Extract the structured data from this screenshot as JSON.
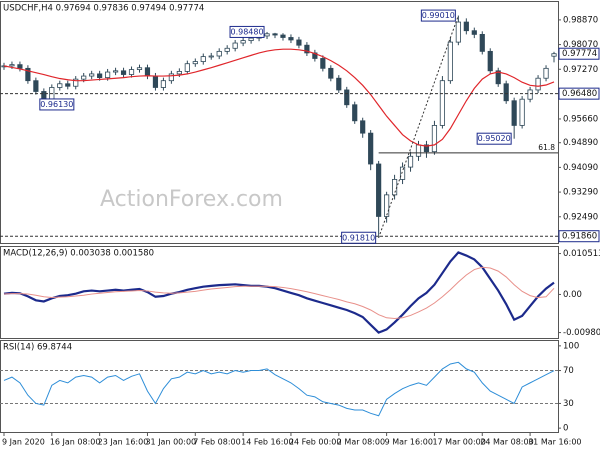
{
  "chart_data": {
    "type": "candlestick",
    "title": "USDCHF,H4  0.97694 0.97836 0.97494 0.97774",
    "watermark": "ActionForex.com",
    "candle_color": "#2f4858",
    "categories": [
      "9 Jan 2020",
      null,
      null,
      null,
      null,
      null,
      "16 Jan 08:00",
      null,
      null,
      null,
      null,
      null,
      "23 Jan 16:00",
      null,
      null,
      null,
      null,
      null,
      "31 Jan 00:00",
      null,
      null,
      null,
      null,
      null,
      "7 Feb 08:00",
      null,
      null,
      null,
      null,
      null,
      "14 Feb 16:00",
      null,
      null,
      null,
      null,
      null,
      "24 Feb 00:00",
      null,
      null,
      null,
      null,
      null,
      "2 Mar 08:00",
      null,
      null,
      null,
      null,
      null,
      "9 Mar 16:00",
      null,
      null,
      null,
      null,
      null,
      "17 Mar 00:00",
      null,
      null,
      null,
      null,
      null,
      "24 Mar 08:00",
      null,
      null,
      null,
      null,
      null,
      "31 Mar 16:00",
      null,
      null,
      null
    ],
    "open": [
      0.9735,
      0.9738,
      0.9742,
      0.973,
      0.969,
      0.9655,
      0.963,
      0.9668,
      0.968,
      0.9672,
      0.9695,
      0.9705,
      0.9712,
      0.97,
      0.9718,
      0.9722,
      0.971,
      0.9726,
      0.9732,
      0.9705,
      0.9668,
      0.969,
      0.9712,
      0.972,
      0.9745,
      0.9752,
      0.9768,
      0.977,
      0.9785,
      0.9795,
      0.9812,
      0.982,
      0.9828,
      0.9835,
      0.9842,
      0.9838,
      0.983,
      0.9822,
      0.9805,
      0.978,
      0.9762,
      0.973,
      0.9698,
      0.966,
      0.9612,
      0.956,
      0.952,
      0.942,
      0.925,
      0.932,
      0.937,
      0.941,
      0.9445,
      0.9482,
      0.946,
      0.9545,
      0.969,
      0.9815,
      0.988,
      0.9852,
      0.984,
      0.9785,
      0.9722,
      0.968,
      0.9625,
      0.9545,
      0.963,
      0.966,
      0.9698,
      0.97694
    ],
    "high": [
      0.9748,
      0.9752,
      0.9752,
      0.974,
      0.97,
      0.9665,
      0.9678,
      0.969,
      0.969,
      0.9705,
      0.9715,
      0.9722,
      0.9722,
      0.9728,
      0.9732,
      0.9732,
      0.9736,
      0.9742,
      0.9742,
      0.9715,
      0.97,
      0.9722,
      0.973,
      0.9755,
      0.9762,
      0.9778,
      0.978,
      0.9795,
      0.9805,
      0.9822,
      0.983,
      0.9838,
      0.9845,
      0.9848,
      0.9845,
      0.9844,
      0.984,
      0.9832,
      0.9815,
      0.979,
      0.9772,
      0.974,
      0.9708,
      0.967,
      0.9622,
      0.957,
      0.953,
      0.943,
      0.933,
      0.9385,
      0.9425,
      0.946,
      0.9495,
      0.9495,
      0.956,
      0.9705,
      0.983,
      0.9901,
      0.9892,
      0.9862,
      0.985,
      0.9795,
      0.9732,
      0.969,
      0.9635,
      0.964,
      0.967,
      0.9708,
      0.974,
      0.97836
    ],
    "low": [
      0.9725,
      0.9728,
      0.972,
      0.968,
      0.9645,
      0.9613,
      0.962,
      0.9658,
      0.9662,
      0.9662,
      0.9685,
      0.9695,
      0.969,
      0.969,
      0.9708,
      0.97,
      0.97,
      0.9716,
      0.9695,
      0.9658,
      0.9658,
      0.968,
      0.9702,
      0.971,
      0.9735,
      0.9742,
      0.9758,
      0.976,
      0.9775,
      0.9785,
      0.9802,
      0.981,
      0.9818,
      0.9825,
      0.9828,
      0.982,
      0.9812,
      0.9795,
      0.977,
      0.9752,
      0.972,
      0.9688,
      0.965,
      0.9602,
      0.955,
      0.9505,
      0.94,
      0.9181,
      0.923,
      0.9305,
      0.9355,
      0.9395,
      0.943,
      0.944,
      0.945,
      0.9535,
      0.968,
      0.9805,
      0.984,
      0.9828,
      0.9775,
      0.9712,
      0.967,
      0.9615,
      0.9502,
      0.9535,
      0.962,
      0.965,
      0.9688,
      0.97494
    ],
    "close": [
      0.9738,
      0.9742,
      0.973,
      0.969,
      0.9655,
      0.963,
      0.9668,
      0.968,
      0.9672,
      0.9695,
      0.9705,
      0.9712,
      0.97,
      0.9718,
      0.9722,
      0.971,
      0.9726,
      0.9732,
      0.9705,
      0.9668,
      0.969,
      0.9712,
      0.972,
      0.9745,
      0.9752,
      0.9768,
      0.977,
      0.9785,
      0.9795,
      0.9812,
      0.982,
      0.9828,
      0.9835,
      0.9842,
      0.9838,
      0.983,
      0.9822,
      0.9805,
      0.978,
      0.9762,
      0.973,
      0.9698,
      0.966,
      0.9612,
      0.956,
      0.952,
      0.942,
      0.925,
      0.932,
      0.937,
      0.941,
      0.9445,
      0.9482,
      0.946,
      0.9545,
      0.969,
      0.9815,
      0.988,
      0.9852,
      0.984,
      0.9785,
      0.9722,
      0.968,
      0.9625,
      0.9545,
      0.963,
      0.966,
      0.9698,
      0.973,
      0.97774
    ],
    "series": [
      {
        "color": "#e0262b",
        "values": [
          0.9738,
          0.9733,
          0.9728,
          0.9722,
          0.9716,
          0.971,
          0.9703,
          0.9697,
          0.9693,
          0.969,
          0.969,
          0.9692,
          0.9694,
          0.9696,
          0.9698,
          0.97,
          0.9703,
          0.9705,
          0.9706,
          0.9705,
          0.9705,
          0.9706,
          0.9708,
          0.9712,
          0.9718,
          0.9725,
          0.9732,
          0.974,
          0.9748,
          0.9756,
          0.9764,
          0.9772,
          0.978,
          0.9786,
          0.979,
          0.9792,
          0.9792,
          0.979,
          0.9786,
          0.9778,
          0.9768,
          0.9755,
          0.974,
          0.9722,
          0.97,
          0.9675,
          0.9645,
          0.961,
          0.9575,
          0.9545,
          0.9515,
          0.9495,
          0.9482,
          0.9478,
          0.9482,
          0.95,
          0.9535,
          0.958,
          0.9625,
          0.9665,
          0.9695,
          0.9712,
          0.9718,
          0.9712,
          0.97,
          0.9685,
          0.9675,
          0.9672,
          0.9676,
          0.9686
        ]
      }
    ],
    "ylim": [
      0.9164,
      0.9945
    ],
    "yticks": [
      {
        "value": 0.9887,
        "label": "0.98870"
      },
      {
        "value": 0.9807,
        "label": "0.98070"
      },
      {
        "value": 0.9727,
        "label": "0.97270"
      },
      {
        "value": 0.9566,
        "label": "0.95660"
      },
      {
        "value": 0.9489,
        "label": "0.94890"
      },
      {
        "value": 0.9409,
        "label": "0.94090"
      },
      {
        "value": 0.9329,
        "label": "0.93290"
      },
      {
        "value": 0.9249,
        "label": "0.92490"
      }
    ],
    "price_lines": [
      {
        "value": 0.97774,
        "label": "0.97774",
        "style": "none"
      },
      {
        "value": 0.9648,
        "label": "0.96480",
        "style": "dashed"
      },
      {
        "value": 0.9186,
        "label": "0.91860",
        "style": "dashed"
      }
    ],
    "annotations": [
      {
        "label": "0.96130",
        "x": 5,
        "y": 0.9613,
        "side": "right"
      },
      {
        "label": "0.98480",
        "x": 33,
        "y": 0.9848,
        "side": "left"
      },
      {
        "label": "0.99010",
        "x": 57,
        "y": 0.9901,
        "side": "left"
      },
      {
        "label": "0.95020",
        "x": 64,
        "y": 0.9502,
        "side": "left"
      },
      {
        "label": "0.91810",
        "x": 47,
        "y": 0.9181,
        "side": "left"
      }
    ],
    "trendline": {
      "x": [
        47,
        57
      ],
      "y": [
        0.9181,
        0.9901
      ]
    },
    "fib": {
      "label": "61.8",
      "value": 0.9456,
      "x": 47
    },
    "indicators": [
      {
        "type": "line",
        "title": "MACD(12,26,9) 0.003038 0.001580",
        "ylim": [
          -0.0112,
          0.0122
        ],
        "yticks": [
          0.010513,
          {
            "value": 0,
            "label": "0.00"
          },
          -0.009804
        ],
        "series": [
          {
            "color": "#1c2a8c",
            "width": 2.2,
            "values": [
              0.0002,
              0.0004,
              0.0003,
              -0.0005,
              -0.0015,
              -0.0018,
              -0.001,
              -0.0004,
              -0.0002,
              0.0002,
              0.0008,
              0.001,
              0.0008,
              0.001,
              0.0012,
              0.001,
              0.0012,
              0.0014,
              0.0006,
              -0.0006,
              -0.0004,
              0.0002,
              0.0006,
              0.0012,
              0.0016,
              0.002,
              0.0022,
              0.0024,
              0.0025,
              0.0026,
              0.0024,
              0.0022,
              0.0022,
              0.002,
              0.0016,
              0.001,
              0.0004,
              -0.0002,
              -0.001,
              -0.0016,
              -0.0022,
              -0.0028,
              -0.0034,
              -0.004,
              -0.0048,
              -0.0058,
              -0.0078,
              -0.0098,
              -0.009,
              -0.0072,
              -0.0052,
              -0.003,
              -0.001,
              0.0004,
              0.0025,
              0.0055,
              0.0085,
              0.0108,
              0.01,
              0.009,
              0.007,
              0.004,
              0.001,
              -0.0025,
              -0.0065,
              -0.0055,
              -0.003,
              -0.0005,
              0.0015,
              0.003038
            ]
          },
          {
            "color": "#e8908a",
            "width": 1,
            "values": [
              0.0001,
              0.0002,
              0.0002,
              0.0001,
              -0.0002,
              -0.0006,
              -0.0008,
              -0.0007,
              -0.0006,
              -0.0004,
              -0.0002,
              0.0001,
              0.0003,
              0.0005,
              0.0007,
              0.0008,
              0.0009,
              0.001,
              0.0009,
              0.0006,
              0.0004,
              0.0003,
              0.0004,
              0.0006,
              0.0008,
              0.0011,
              0.0014,
              0.0016,
              0.0018,
              0.002,
              0.0021,
              0.0021,
              0.0021,
              0.0021,
              0.002,
              0.0018,
              0.0015,
              0.0011,
              0.0007,
              0.0002,
              -0.0003,
              -0.0008,
              -0.0013,
              -0.0019,
              -0.0024,
              -0.0031,
              -0.004,
              -0.0052,
              -0.006,
              -0.0062,
              -0.006,
              -0.0054,
              -0.0045,
              -0.0035,
              -0.0022,
              -0.0006,
              0.0012,
              0.0032,
              0.005,
              0.0064,
              0.007,
              0.0068,
              0.006,
              0.0045,
              0.0025,
              0.0008,
              -0.0003,
              -0.0008,
              -0.0006,
              0.00158
            ]
          }
        ]
      },
      {
        "type": "line",
        "title": "RSI(14) 69.8744",
        "ylim": [
          -4.7,
          105.9
        ],
        "yticks": [
          100,
          70,
          30,
          0
        ],
        "levels": [
          70,
          30
        ],
        "series": [
          {
            "color": "#2e8ed8",
            "width": 1,
            "values": [
              58,
              62,
              55,
              40,
              30,
              28,
              52,
              58,
              55,
              62,
              64,
              62,
              55,
              62,
              64,
              58,
              63,
              66,
              45,
              30,
              48,
              60,
              62,
              68,
              66,
              70,
              66,
              68,
              66,
              70,
              68,
              70,
              70,
              72,
              65,
              60,
              55,
              48,
              40,
              38,
              32,
              30,
              28,
              24,
              22,
              22,
              18,
              15,
              35,
              42,
              48,
              52,
              55,
              52,
              62,
              72,
              78,
              80,
              72,
              68,
              55,
              45,
              40,
              35,
              30,
              50,
              55,
              60,
              65,
              69.8744
            ]
          }
        ]
      }
    ]
  }
}
